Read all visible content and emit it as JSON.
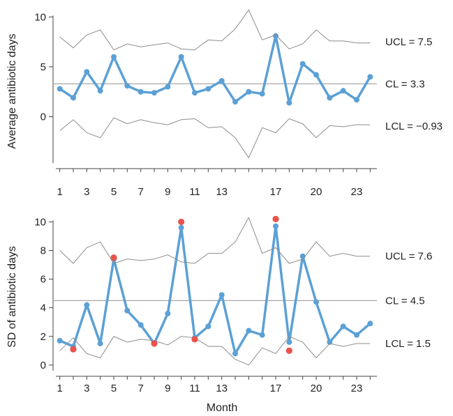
{
  "colors": {
    "series": "#5ba0d6",
    "limit": "#8c8c8c",
    "centerline": "#a6a6a6",
    "axis": "#444444",
    "signal": "#e8534b"
  },
  "chart_data": [
    {
      "type": "line",
      "title": "",
      "xlabel": "",
      "ylabel": "Average antibiotic days",
      "ylim": [
        -4.5,
        11
      ],
      "yticks": [
        0,
        5,
        10
      ],
      "ytick_labels": [
        "0",
        "5",
        "10"
      ],
      "xlim": [
        0.5,
        24.5
      ],
      "xticks": [
        1,
        3,
        5,
        7,
        9,
        11,
        13,
        17,
        20,
        23
      ],
      "xtick_labels": [
        "1",
        "3",
        "5",
        "7",
        "9",
        "11",
        "13",
        "17",
        "20",
        "23"
      ],
      "grid": false,
      "x": [
        1,
        2,
        3,
        4,
        5,
        6,
        7,
        8,
        9,
        10,
        11,
        12,
        13,
        14,
        15,
        16,
        17,
        18,
        19,
        20,
        21,
        22,
        23,
        24
      ],
      "series": [
        {
          "role": "data",
          "values": [
            2.8,
            1.9,
            4.5,
            2.6,
            6.0,
            3.1,
            2.5,
            2.4,
            3.0,
            6.0,
            2.4,
            2.8,
            3.6,
            1.5,
            2.5,
            2.3,
            8.1,
            1.4,
            5.3,
            4.2,
            1.9,
            2.6,
            1.7,
            4.0
          ]
        },
        {
          "role": "upper_limit",
          "values": [
            8.0,
            6.9,
            8.2,
            8.7,
            6.7,
            7.3,
            7.0,
            7.2,
            7.4,
            6.8,
            6.7,
            7.7,
            7.6,
            8.8,
            10.7,
            7.7,
            8.2,
            6.8,
            7.3,
            8.7,
            7.6,
            7.6,
            7.4,
            7.4
          ]
        },
        {
          "role": "lower_limit",
          "values": [
            -1.4,
            -0.3,
            -1.6,
            -2.1,
            -0.1,
            -0.7,
            -0.3,
            -0.6,
            -0.8,
            -0.3,
            -0.2,
            -1.1,
            -1.0,
            -2.1,
            -4.1,
            -1.1,
            -1.6,
            -0.2,
            -0.7,
            -2.1,
            -0.9,
            -1.0,
            -0.8,
            -0.8
          ]
        }
      ],
      "center_line": 3.3,
      "signals": [],
      "annotations": [
        {
          "text": "UCL = 7.5",
          "y": 7.5
        },
        {
          "text": "CL = 3.3",
          "y": 3.3
        },
        {
          "text": "LCL = −0.93",
          "y": -0.93
        }
      ]
    },
    {
      "type": "line",
      "title": "",
      "xlabel": "Month",
      "ylabel": "SD of antibiotic days",
      "ylim": [
        -0.3,
        10.8
      ],
      "yticks": [
        0,
        2,
        4,
        6,
        8,
        10
      ],
      "ytick_labels": [
        "0",
        "2",
        "4",
        "6",
        "8",
        "10"
      ],
      "xlim": [
        0.5,
        24.5
      ],
      "xticks": [
        1,
        3,
        5,
        7,
        9,
        11,
        13,
        17,
        20,
        23
      ],
      "xtick_labels": [
        "1",
        "3",
        "5",
        "7",
        "9",
        "11",
        "13",
        "17",
        "20",
        "23"
      ],
      "grid": false,
      "x": [
        1,
        2,
        3,
        4,
        5,
        6,
        7,
        8,
        9,
        10,
        11,
        12,
        13,
        14,
        15,
        16,
        17,
        18,
        19,
        20,
        21,
        22,
        23,
        24
      ],
      "series": [
        {
          "role": "data",
          "values": [
            1.7,
            1.3,
            4.2,
            1.5,
            7.4,
            3.8,
            2.8,
            1.5,
            3.6,
            9.6,
            1.9,
            2.7,
            4.9,
            0.8,
            2.4,
            2.1,
            9.7,
            1.6,
            7.6,
            4.4,
            1.6,
            2.7,
            2.1,
            2.9
          ]
        },
        {
          "role": "upper_limit",
          "values": [
            8.0,
            7.1,
            8.2,
            8.6,
            7.1,
            7.4,
            7.3,
            7.4,
            7.7,
            7.2,
            7.1,
            7.8,
            7.8,
            8.6,
            10.3,
            7.8,
            8.2,
            7.1,
            7.4,
            8.6,
            7.6,
            7.8,
            7.6,
            7.6
          ]
        },
        {
          "role": "lower_limit",
          "values": [
            1.0,
            1.9,
            0.8,
            0.5,
            2.0,
            1.6,
            1.8,
            1.7,
            1.4,
            2.0,
            1.9,
            1.3,
            1.3,
            0.4,
            0.0,
            1.2,
            0.8,
            2.0,
            1.6,
            0.5,
            1.5,
            1.3,
            1.5,
            1.5
          ]
        }
      ],
      "center_line": 4.5,
      "signals": [
        {
          "x": 2,
          "y": 1.1
        },
        {
          "x": 5,
          "y": 7.5
        },
        {
          "x": 8,
          "y": 1.5
        },
        {
          "x": 10,
          "y": 10.0
        },
        {
          "x": 11,
          "y": 1.8
        },
        {
          "x": 17,
          "y": 10.2
        },
        {
          "x": 18,
          "y": 1.0
        }
      ],
      "annotations": [
        {
          "text": "UCL = 7.6",
          "y": 7.6
        },
        {
          "text": "CL = 4.5",
          "y": 4.5
        },
        {
          "text": "LCL = 1.5",
          "y": 1.5
        }
      ]
    }
  ]
}
